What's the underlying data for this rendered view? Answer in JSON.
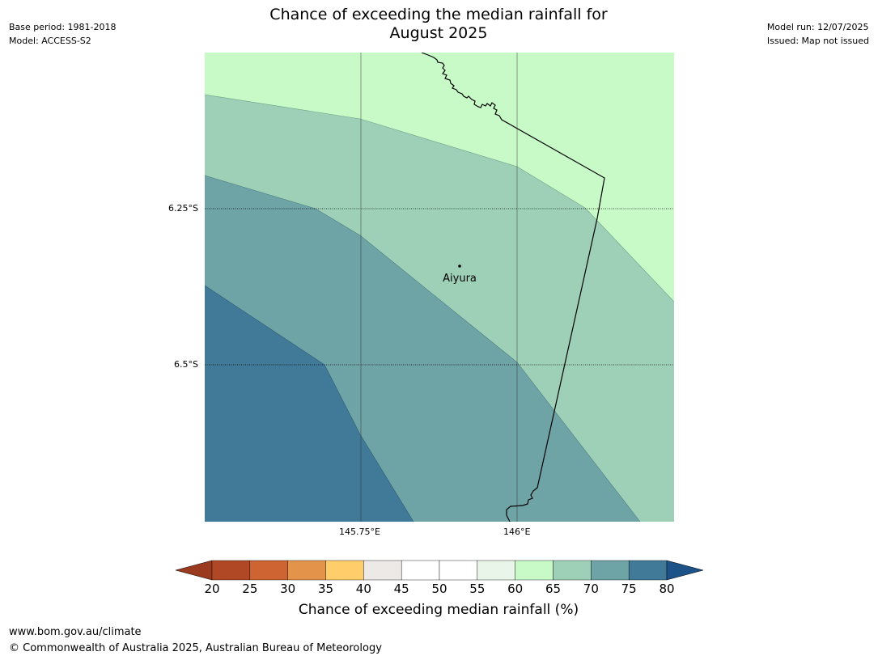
{
  "title_lines": [
    "Chance of exceeding the median rainfall for",
    "August 2025"
  ],
  "meta_left": [
    "Base period: 1981-2018",
    "Model: ACCESS-S2"
  ],
  "meta_right": [
    "Model run: 12/07/2025",
    "Issued: Map not issued"
  ],
  "map": {
    "latitude_labels": [
      "6.25°S",
      "6.5°S"
    ],
    "longitude_labels": [
      "145.75°E",
      "146°E"
    ],
    "place": {
      "name": "Aiyura"
    },
    "zone_colors": {
      "60-65": "#c8fac8",
      "65-70": "#9ed0b8",
      "70-75": "#6fa4a7",
      "75-80": "#407a98"
    },
    "border_color": "#000000"
  },
  "colorbar": {
    "ticks": [
      "20",
      "25",
      "30",
      "35",
      "40",
      "45",
      "50",
      "55",
      "60",
      "65",
      "70",
      "75",
      "80"
    ],
    "colors": [
      "#b14825",
      "#cd6431",
      "#e3934a",
      "#ffcd69",
      "#ece9e6",
      "#ffffff",
      "#ffffff",
      "#e9f5e9",
      "#c8fac8",
      "#9ed0b8",
      "#6fa4a7",
      "#407a98"
    ],
    "extend_low_color": "#9a3a1f",
    "extend_high_color": "#1c5288",
    "label": "Chance of exceeding median rainfall (%)"
  },
  "footer": {
    "url": "www.bom.gov.au/climate",
    "copyright": "© Commonwealth of Australia 2025, Australian Bureau of Meteorology"
  }
}
